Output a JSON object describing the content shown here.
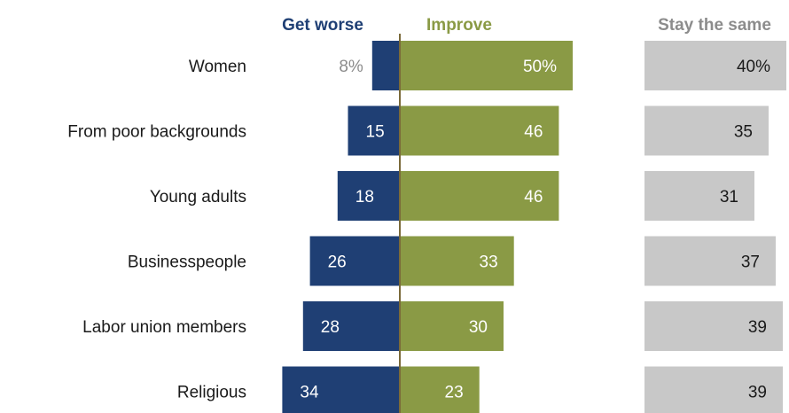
{
  "chart_data": {
    "type": "bar",
    "layout": "diverging with separate column",
    "categories": [
      "Women",
      "From poor backgrounds",
      "Young adults",
      "Businesspeople",
      "Labor union members",
      "Religious"
    ],
    "series": [
      {
        "name": "Get worse",
        "color": "#1f3f74",
        "values": [
          8,
          15,
          18,
          26,
          28,
          34
        ],
        "labels": [
          "8%",
          "15",
          "18",
          "26",
          "28",
          "34"
        ],
        "direction": "left"
      },
      {
        "name": "Improve",
        "color": "#8a9a45",
        "values": [
          50,
          46,
          46,
          33,
          30,
          23
        ],
        "labels": [
          "50%",
          "46",
          "46",
          "33",
          "30",
          "23"
        ],
        "direction": "right"
      },
      {
        "name": "Stay the same",
        "color": "#c8c8c8",
        "values": [
          40,
          35,
          31,
          37,
          39,
          39
        ],
        "labels": [
          "40%",
          "35",
          "31",
          "37",
          "39",
          "39"
        ],
        "direction": "separate"
      }
    ],
    "value_unit": "%",
    "colors": {
      "worse_header": "#1f3f74",
      "improve_header": "#8a9a45",
      "same_header": "#8c8c8c",
      "label_on_dark": "#ffffff",
      "label_outside": "#8c8c8c",
      "label_on_gray": "#1a1a1a",
      "center_line": "#7a6a3a"
    }
  }
}
